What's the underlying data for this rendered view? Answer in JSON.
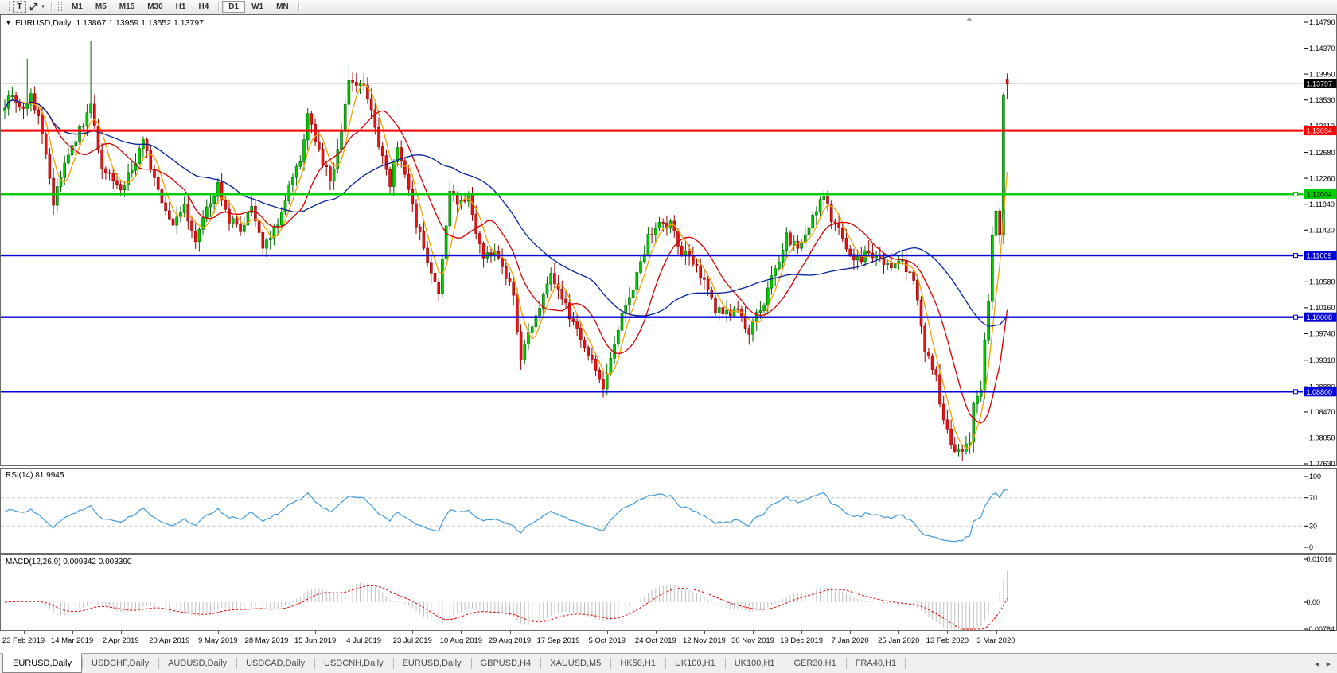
{
  "toolbar": {
    "text_tool_label": "T",
    "timeframes": [
      "M1",
      "M5",
      "M15",
      "M30",
      "H1",
      "H4",
      "D1",
      "W1",
      "MN"
    ],
    "active_timeframe": "D1"
  },
  "chart": {
    "symbol_period": "EURUSD,Daily",
    "ohlc_line": "1.13867 1.13959 1.13552 1.13797",
    "title_line": "EURUSD,Daily  1.13867 1.13959 1.13552 1.13797"
  },
  "rsi_pane": {
    "label_line": "RSI(14) 81.9945",
    "scale": [
      "100",
      "70",
      "30",
      "0"
    ]
  },
  "macd_pane": {
    "label_line": "MACD(12,26,9) 0.009342 0.003390",
    "scale": [
      "0.01016",
      "0.00",
      "-0.00784"
    ]
  },
  "date_axis": {
    "labels": [
      "23 Feb 2019",
      "14 Mar 2019",
      "2 Apr 2019",
      "20 Apr 2019",
      "9 May 2019",
      "28 May 2019",
      "15 Jun 2019",
      "4 Jul 2019",
      "23 Jul 2019",
      "10 Aug 2019",
      "29 Aug 2019",
      "17 Sep 2019",
      "5 Oct 2019",
      "24 Oct 2019",
      "12 Nov 2019",
      "30 Nov 2019",
      "19 Dec 2019",
      "7 Jan 2020",
      "25 Jan 2020",
      "13 Feb 2020",
      "3 Mar 2020"
    ]
  },
  "tabs": {
    "items": [
      "EURUSD,Daily",
      "USDCHF,Daily",
      "AUDUSD,Daily",
      "USDCAD,Daily",
      "USDCNH,Daily",
      "EURUSD,Daily",
      "GBPUSD,H4",
      "XAUUSD,M5",
      "HK50,H1",
      "UK100,H1",
      "UK100,H1",
      "GER30,H1",
      "FRA40,H1"
    ],
    "active_index": 0,
    "scroll_left_icon": "◀",
    "scroll_right_icon": "▶"
  },
  "chart_data": {
    "type": "candlestick",
    "symbol": "EURUSD",
    "timeframe": "Daily",
    "current_ohlc": {
      "open": 1.13867,
      "high": 1.13959,
      "low": 1.13552,
      "close": 1.13797
    },
    "y_axis": {
      "top": 1.1479,
      "bottom": 1.0763,
      "tick_step": 0.0042
    },
    "price_ticks": [
      "1.14790",
      "1.14370",
      "1.13950",
      "1.13530",
      "1.13110",
      "1.12680",
      "1.12260",
      "1.11840",
      "1.11420",
      "1.10580",
      "1.10160",
      "1.09740",
      "1.09310",
      "1.08880",
      "1.08470",
      "1.08050",
      "1.07630"
    ],
    "current_price_line": {
      "price": 1.13797,
      "label": "1.13797",
      "line_color": "#b4b4b4",
      "badge_bg": "#000000",
      "badge_text": "#ffffff"
    },
    "horizontal_lines": [
      {
        "price": 1.13034,
        "label": "1.13034",
        "color": "#ff0000",
        "width": 3,
        "text_color": "#ffffff",
        "handle": false
      },
      {
        "price": 1.12004,
        "label": "1.12004",
        "color": "#00cc00",
        "width": 3,
        "text_color": "#000000",
        "handle": true
      },
      {
        "price": 1.11009,
        "label": "1.11009",
        "color": "#0000dd",
        "width": 2.4,
        "text_color": "#ffffff",
        "handle": true
      },
      {
        "price": 1.10008,
        "label": "1.10008",
        "color": "#0000dd",
        "width": 2.4,
        "text_color": "#ffffff",
        "handle": true
      },
      {
        "price": 1.088,
        "label": "1.08800",
        "color": "#0000dd",
        "width": 2.4,
        "text_color": "#ffffff",
        "handle": true
      }
    ],
    "candle_colors": {
      "bull_fill": "#00cc00",
      "bull_stroke": "#006600",
      "bear_fill": "#ee1111",
      "bear_stroke": "#8f0000"
    },
    "moving_averages": [
      {
        "period": 5,
        "color": "#f2a200"
      },
      {
        "period": 13,
        "color": "#d40000"
      },
      {
        "period": 40,
        "color": "#001f9e"
      }
    ],
    "rsi": {
      "period": 14,
      "current": 81.9945,
      "levels": [
        70,
        30
      ],
      "line_color": "#3d9ade",
      "level_color": "#c8c8c8"
    },
    "macd": {
      "fast": 12,
      "slow": 26,
      "signal_period": 9,
      "main": 0.009342,
      "signal": 0.00339,
      "hist_color": "#c0c0c0",
      "signal_color": "#e00000"
    },
    "num_days": 269,
    "first_open": 1.1335,
    "anchors": [
      [
        0,
        1.1345
      ],
      [
        2,
        1.136
      ],
      [
        5,
        1.1335
      ],
      [
        7,
        1.1365
      ],
      [
        10,
        1.13
      ],
      [
        13,
        1.1185
      ],
      [
        16,
        1.125
      ],
      [
        20,
        1.1305
      ],
      [
        23,
        1.134
      ],
      [
        26,
        1.124
      ],
      [
        29,
        1.1225
      ],
      [
        31,
        1.1205
      ],
      [
        34,
        1.1245
      ],
      [
        37,
        1.1285
      ],
      [
        40,
        1.122
      ],
      [
        45,
        1.1155
      ],
      [
        48,
        1.1185
      ],
      [
        51,
        1.112
      ],
      [
        54,
        1.1175
      ],
      [
        57,
        1.1215
      ],
      [
        60,
        1.116
      ],
      [
        63,
        1.1145
      ],
      [
        66,
        1.1175
      ],
      [
        69,
        1.111
      ],
      [
        73,
        1.1155
      ],
      [
        76,
        1.121
      ],
      [
        79,
        1.1255
      ],
      [
        81,
        1.1335
      ],
      [
        84,
        1.127
      ],
      [
        87,
        1.122
      ],
      [
        90,
        1.1305
      ],
      [
        92,
        1.139
      ],
      [
        94,
        1.137
      ],
      [
        96,
        1.1375
      ],
      [
        100,
        1.1285
      ],
      [
        103,
        1.122
      ],
      [
        105,
        1.127
      ],
      [
        108,
        1.121
      ],
      [
        110,
        1.115
      ],
      [
        112,
        1.112
      ],
      [
        114,
        1.1075
      ],
      [
        116,
        1.1045
      ],
      [
        118,
        1.115
      ],
      [
        119,
        1.1205
      ],
      [
        121,
        1.1185
      ],
      [
        124,
        1.1195
      ],
      [
        126,
        1.1135
      ],
      [
        128,
        1.109
      ],
      [
        130,
        1.1105
      ],
      [
        132,
        1.1095
      ],
      [
        134,
        1.107
      ],
      [
        136,
        1.104
      ],
      [
        138,
        1.093
      ],
      [
        140,
        1.0975
      ],
      [
        143,
        1.1015
      ],
      [
        146,
        1.107
      ],
      [
        149,
        1.103
      ],
      [
        152,
        1.099
      ],
      [
        155,
        1.095
      ],
      [
        157,
        1.093
      ],
      [
        160,
        1.089
      ],
      [
        162,
        1.093
      ],
      [
        164,
        1.0985
      ],
      [
        167,
        1.103
      ],
      [
        170,
        1.1085
      ],
      [
        172,
        1.113
      ],
      [
        175,
        1.1155
      ],
      [
        178,
        1.115
      ],
      [
        181,
        1.111
      ],
      [
        184,
        1.1085
      ],
      [
        187,
        1.1065
      ],
      [
        190,
        1.1015
      ],
      [
        193,
        1.1005
      ],
      [
        196,
        1.101
      ],
      [
        199,
        1.098
      ],
      [
        203,
        1.1025
      ],
      [
        206,
        1.108
      ],
      [
        209,
        1.113
      ],
      [
        212,
        1.1115
      ],
      [
        215,
        1.115
      ],
      [
        217,
        1.1175
      ],
      [
        219,
        1.1195
      ],
      [
        221,
        1.116
      ],
      [
        224,
        1.113
      ],
      [
        227,
        1.109
      ],
      [
        231,
        1.1105
      ],
      [
        234,
        1.1095
      ],
      [
        237,
        1.1085
      ],
      [
        240,
        1.1093
      ],
      [
        243,
        1.106
      ],
      [
        246,
        1.095
      ],
      [
        249,
        1.0905
      ],
      [
        251,
        1.083
      ],
      [
        253,
        1.0795
      ],
      [
        256,
        1.078
      ],
      [
        258,
        1.0805
      ],
      [
        259,
        1.0855
      ],
      [
        261,
        1.089
      ],
      [
        263,
        1.1026
      ],
      [
        264,
        1.1133
      ],
      [
        265,
        1.1173
      ],
      [
        266,
        1.1135
      ],
      [
        267,
        1.136
      ],
      [
        268,
        1.13797
      ]
    ],
    "pinned_closes": {
      "263": 1.1026,
      "264": 1.1133,
      "265": 1.1173,
      "266": 1.1135,
      "267": 1.136,
      "268": 1.13797
    },
    "pinned_highs": {
      "6": 1.142,
      "23": 1.1448,
      "92": 1.1412
    },
    "last_candle": {
      "o": 1.13867,
      "h": 1.13959,
      "l": 1.13552,
      "c": 1.13797
    }
  }
}
